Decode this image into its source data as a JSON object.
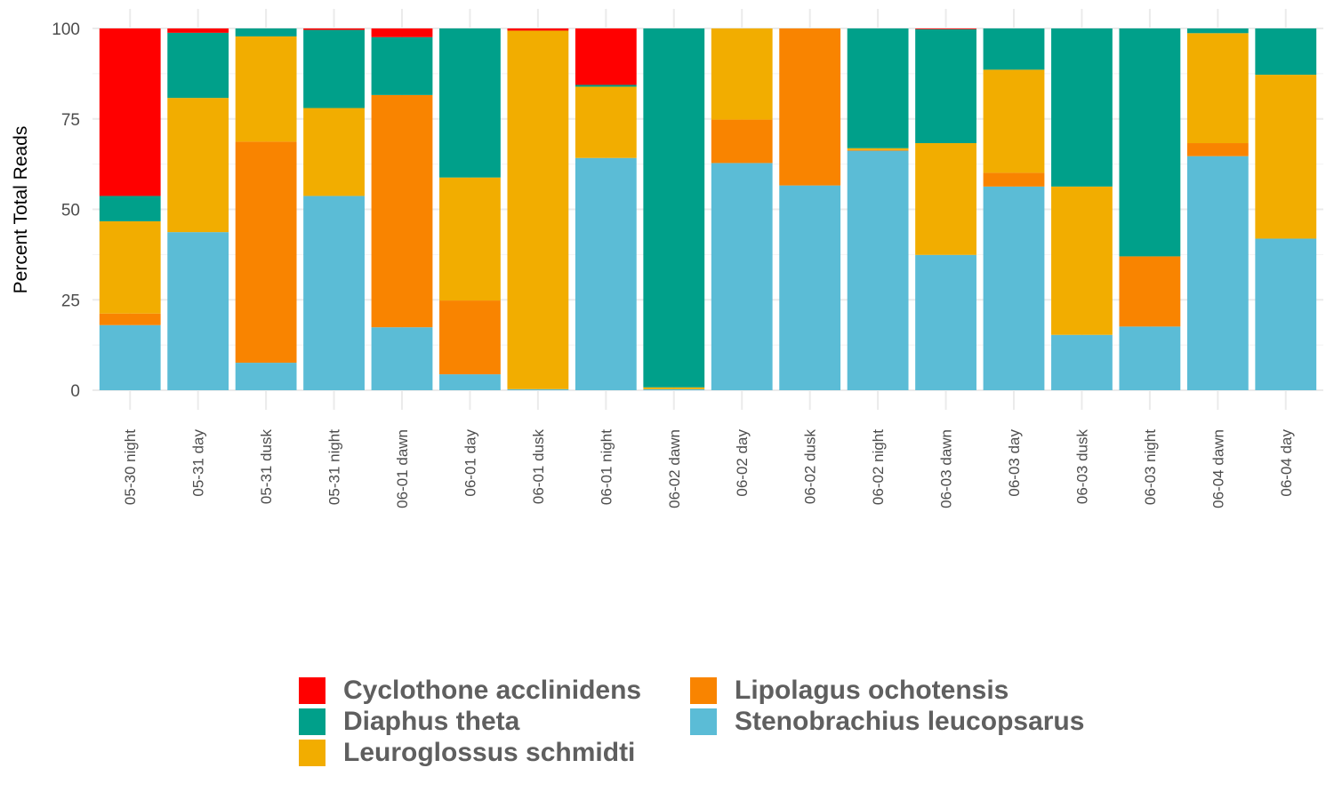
{
  "chart_data": {
    "type": "bar",
    "stacked": true,
    "title": "",
    "xlabel": "",
    "ylabel": "Percent Total Reads",
    "ylim": [
      0,
      100
    ],
    "yticks": [
      0,
      25,
      50,
      75,
      100
    ],
    "grid": true,
    "legend_position": "bottom",
    "categories": [
      "05-30 night",
      "05-31 day",
      "05-31 dusk",
      "05-31 night",
      "06-01 dawn",
      "06-01 day",
      "06-01 dusk",
      "06-01 night",
      "06-02 dawn",
      "06-02 day",
      "06-02 dusk",
      "06-02 night",
      "06-03 dawn",
      "06-03 day",
      "06-03 dusk",
      "06-03 night",
      "06-04 dawn",
      "06-04 day"
    ],
    "series": [
      {
        "name": "Stenobrachius leucopsarus",
        "color": "#5bbcd6",
        "values": [
          18,
          43.7,
          7.6,
          53.7,
          17.4,
          4.4,
          0.3,
          64.2,
          0.3,
          62.8,
          56.6,
          66.2,
          37.4,
          56.3,
          15.3,
          17.6,
          64.7,
          41.9
        ]
      },
      {
        "name": "Lipolagus ochotensis",
        "color": "#f98400",
        "values": [
          3.2,
          0,
          61.1,
          0,
          64.2,
          20.4,
          0,
          0,
          0,
          12,
          43.4,
          0.2,
          0,
          3.8,
          0,
          19.4,
          3.6,
          0
        ]
      },
      {
        "name": "Leuroglossus schmidti",
        "color": "#f2ad00",
        "values": [
          25.5,
          37.1,
          29.1,
          24.3,
          0,
          34,
          98.8,
          19.7,
          0.5,
          25.2,
          0,
          0.5,
          30.9,
          28.5,
          41,
          0,
          30.4,
          45.3
        ]
      },
      {
        "name": "Diaphus theta",
        "color": "#00a08a",
        "values": [
          7,
          18,
          2.2,
          21.6,
          16,
          41.2,
          0,
          0.5,
          99.2,
          0,
          0,
          33.1,
          31.5,
          11.4,
          43.7,
          63,
          1.3,
          12.8
        ]
      },
      {
        "name": "Cyclothone acclinidens",
        "color": "#ff0000",
        "values": [
          46.3,
          1.2,
          0,
          0.4,
          2.4,
          0,
          0.6,
          15.6,
          0,
          0,
          0,
          0,
          0.2,
          0,
          0,
          0,
          0,
          0
        ]
      }
    ]
  },
  "legend": [
    {
      "label": "Cyclothone acclinidens",
      "color": "#ff0000"
    },
    {
      "label": "Diaphus theta",
      "color": "#00a08a"
    },
    {
      "label": "Leuroglossus schmidti",
      "color": "#f2ad00"
    },
    {
      "label": "Lipolagus ochotensis",
      "color": "#f98400"
    },
    {
      "label": "Stenobrachius leucopsarus",
      "color": "#5bbcd6"
    }
  ]
}
